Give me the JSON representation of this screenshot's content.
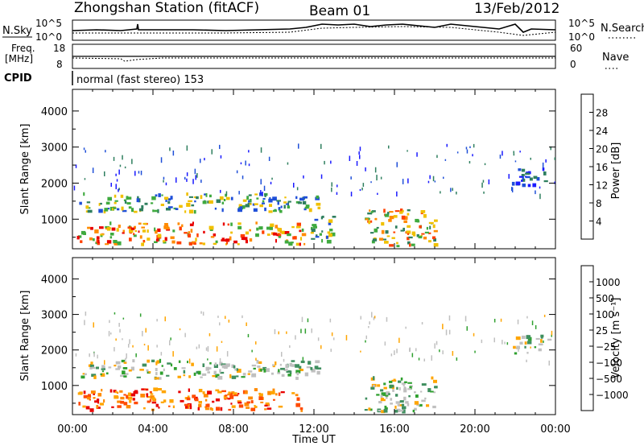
{
  "header": {
    "station": "Zhongshan Station (fitACF)",
    "beam": "Beam 01",
    "date": "13/Feb/2012"
  },
  "top_panels": {
    "nsky_label": "N.Sky",
    "nsky_ticks": [
      "10^5",
      "10^0"
    ],
    "nsearch_label": "N.Search",
    "nsearch_ticks": [
      "10^5",
      "10^0"
    ],
    "freq_label": "Freq.",
    "freq_unit": "[MHz]",
    "freq_ticks": [
      "18",
      "8"
    ],
    "nave_label": "Nave",
    "nave_ticks": [
      "60",
      "0"
    ],
    "cpid_label": "CPID",
    "cpid_text": "normal (fast stereo) 153"
  },
  "x_axis": {
    "title": "Time UT",
    "ticks": [
      "00:00",
      "04:00",
      "08:00",
      "12:00",
      "16:00",
      "20:00",
      "00:00"
    ]
  },
  "colors": {
    "power_scale": [
      "#1a1aff",
      "#1f4fd8",
      "#2f7f5f",
      "#3faa3f",
      "#f0c000",
      "#ff8a00",
      "#ff4000",
      "#e80000"
    ],
    "velocity_scale": [
      "#e80000",
      "#ff4a00",
      "#ff8a00",
      "#ffa500",
      "#c0c0c0",
      "#c0c0c0",
      "#2fa02f",
      "#3f8f5f",
      "#2f5fb0",
      "#1a3fd0"
    ]
  },
  "chart_data": [
    {
      "type": "heatmap",
      "name": "power",
      "ylabel": "Slant Range [km]",
      "xlabel": "Time UT",
      "x_range": [
        "00:00",
        "24:00"
      ],
      "ylim": [
        180,
        4600
      ],
      "y_ticks": [
        "1000",
        "2000",
        "3000",
        "4000"
      ],
      "colorbar": {
        "label": "Power [dB]",
        "range": [
          0,
          32
        ],
        "ticks": [
          "4",
          "8",
          "12",
          "16",
          "20",
          "24",
          "28"
        ]
      },
      "echo_regions": [
        {
          "t": [
            0.2,
            11.5
          ],
          "range_km": [
            300,
            900
          ],
          "level": "high"
        },
        {
          "t": [
            0.3,
            12.2
          ],
          "range_km": [
            1200,
            1700
          ],
          "level": "medium"
        },
        {
          "t": [
            11.8,
            13.0
          ],
          "range_km": [
            300,
            1100
          ],
          "level": "medium"
        },
        {
          "t": [
            14.5,
            18.0
          ],
          "range_km": [
            250,
            1250
          ],
          "level": "medium-high"
        },
        {
          "t": [
            21.8,
            23.6
          ],
          "range_km": [
            1900,
            2400
          ],
          "level": "low"
        }
      ]
    },
    {
      "type": "heatmap",
      "name": "velocity",
      "ylabel": "Slant Range [km]",
      "xlabel": "Time UT",
      "x_range": [
        "00:00",
        "24:00"
      ],
      "ylim": [
        180,
        4600
      ],
      "y_ticks": [
        "1000",
        "2000",
        "3000",
        "4000"
      ],
      "colorbar": {
        "label": "Velocity [m s⁻¹]",
        "ticks": [
          "1000",
          "500",
          "100",
          "25",
          "−25",
          "−100",
          "−500",
          "−1000"
        ]
      },
      "echo_regions": [
        {
          "t": [
            0.2,
            11.5
          ],
          "range_km": [
            300,
            900
          ],
          "velocity": "negative"
        },
        {
          "t": [
            0.3,
            12.2
          ],
          "range_km": [
            1200,
            1700
          ],
          "velocity": "near-zero"
        },
        {
          "t": [
            14.5,
            18.0
          ],
          "range_km": [
            250,
            1250
          ],
          "velocity": "near-zero"
        },
        {
          "t": [
            21.8,
            23.6
          ],
          "range_km": [
            1900,
            2400
          ],
          "velocity": "near-zero"
        }
      ]
    }
  ]
}
